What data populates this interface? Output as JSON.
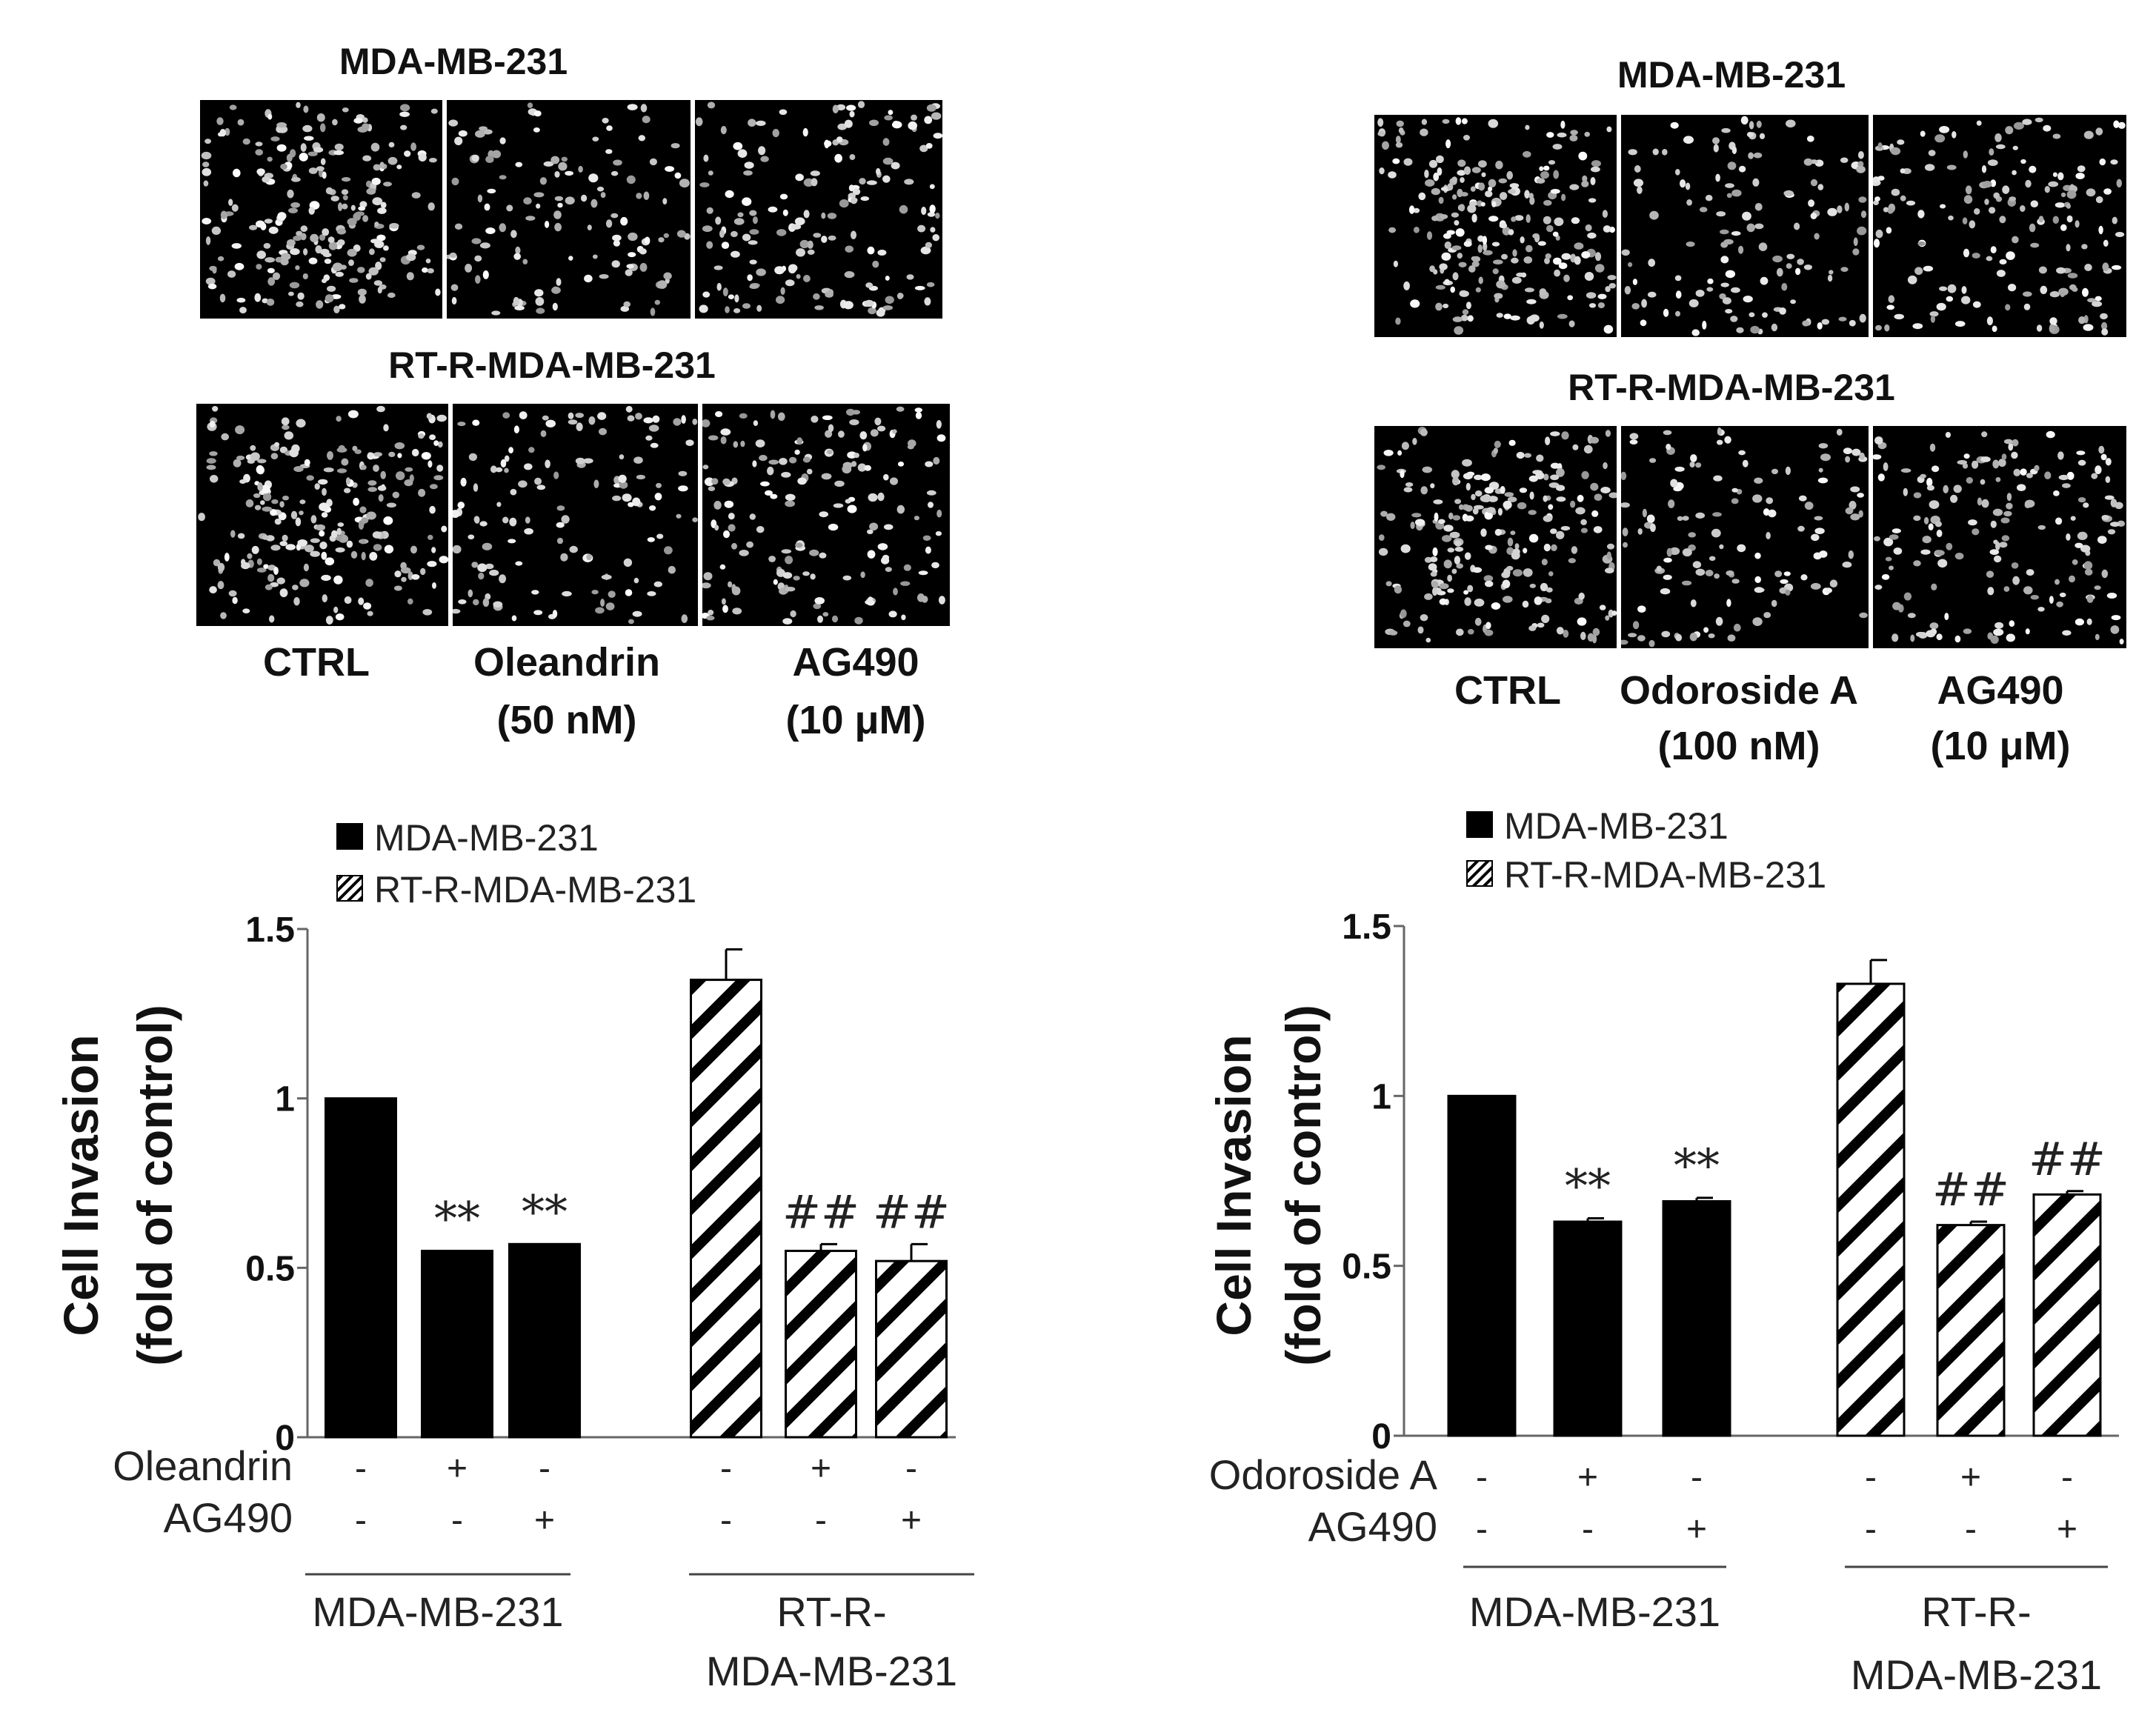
{
  "panels": [
    {
      "id": "left",
      "micrographs": {
        "row_titles": [
          "MDA-MB-231",
          "RT-R-MDA-MB-231"
        ],
        "column_labels": [
          {
            "line1": "CTRL",
            "line2": ""
          },
          {
            "line1": "Oleandrin",
            "line2": "(50 nM)"
          },
          {
            "line1": "AG490",
            "line2": "(10 μM)"
          }
        ]
      },
      "treatment_rows": [
        {
          "label": "Oleandrin",
          "signs": [
            "-",
            "+",
            "-",
            "-",
            "+",
            "-"
          ]
        },
        {
          "label": "AG490",
          "signs": [
            "-",
            "-",
            "+",
            "-",
            "-",
            "+"
          ]
        }
      ],
      "group_labels": [
        {
          "lines": [
            "MDA-MB-231"
          ]
        },
        {
          "lines": [
            "RT-R-",
            "MDA-MB-231"
          ]
        }
      ]
    },
    {
      "id": "right",
      "micrographs": {
        "row_titles": [
          "MDA-MB-231",
          "RT-R-MDA-MB-231"
        ],
        "column_labels": [
          {
            "line1": "CTRL",
            "line2": ""
          },
          {
            "line1": "Odoroside A",
            "line2": "(100 nM)"
          },
          {
            "line1": "AG490",
            "line2": "(10 μM)"
          }
        ]
      },
      "treatment_rows": [
        {
          "label": "Odoroside A",
          "signs": [
            "-",
            "+",
            "-",
            "-",
            "+",
            "-"
          ]
        },
        {
          "label": "AG490",
          "signs": [
            "-",
            "-",
            "+",
            "-",
            "-",
            "+"
          ]
        }
      ],
      "group_labels": [
        {
          "lines": [
            "MDA-MB-231"
          ]
        },
        {
          "lines": [
            "RT-R-",
            "MDA-MB-231"
          ]
        }
      ]
    }
  ],
  "chart_data": [
    {
      "type": "bar",
      "title": "",
      "xlabel": "",
      "ylabel": "Cell Invasion",
      "ylabel_line2": "(fold of control)",
      "ylim": [
        0,
        1.5
      ],
      "yticks": [
        "0",
        "0.5",
        "1",
        "1.5"
      ],
      "grid": false,
      "legend_position": "top",
      "legend": [
        "MDA-MB-231",
        "RT-R-MDA-MB-231"
      ],
      "series": [
        {
          "name": "MDA-MB-231",
          "fill": "solid",
          "values": [
            1.0,
            0.55,
            0.57
          ],
          "errors": [
            0,
            0,
            0
          ],
          "marks": [
            "",
            "**",
            "**"
          ]
        },
        {
          "name": "RT-R-MDA-MB-231",
          "fill": "hatched",
          "values": [
            1.35,
            0.55,
            0.52
          ],
          "errors": [
            0.09,
            0.02,
            0.05
          ],
          "marks": [
            "",
            "##",
            "##"
          ]
        }
      ]
    },
    {
      "type": "bar",
      "title": "",
      "xlabel": "",
      "ylabel": "Cell Invasion",
      "ylabel_line2": "(fold of control)",
      "ylim": [
        0,
        1.5
      ],
      "yticks": [
        "0",
        "0.5",
        "1",
        "1.5"
      ],
      "grid": false,
      "legend_position": "top",
      "legend": [
        "MDA-MB-231",
        "RT-R-MDA-MB-231"
      ],
      "series": [
        {
          "name": "MDA-MB-231",
          "fill": "solid",
          "values": [
            1.0,
            0.63,
            0.69
          ],
          "errors": [
            0,
            0.01,
            0.01
          ],
          "marks": [
            "",
            "**",
            "**"
          ]
        },
        {
          "name": "RT-R-MDA-MB-231",
          "fill": "hatched",
          "values": [
            1.33,
            0.62,
            0.71
          ],
          "errors": [
            0.07,
            0.01,
            0.01
          ],
          "marks": [
            "",
            "##",
            "##"
          ]
        }
      ]
    }
  ]
}
